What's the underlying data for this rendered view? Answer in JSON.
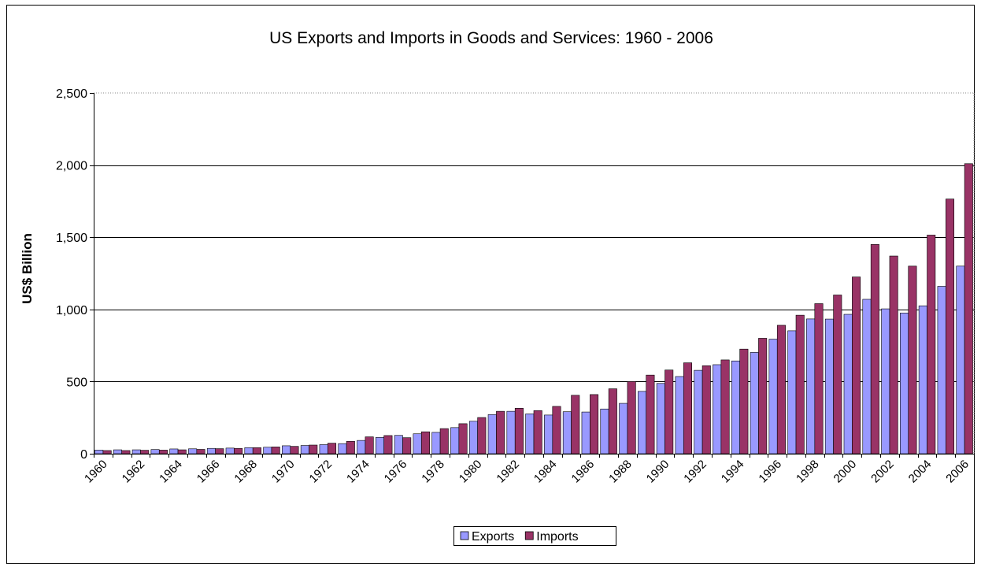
{
  "chart_data": {
    "type": "bar",
    "title": "US Exports and Imports in Goods and Services: 1960 - 2006",
    "xlabel": "",
    "ylabel": "US$ Billion",
    "ylim": [
      0,
      2500
    ],
    "yticks": [
      0,
      500,
      1000,
      1500,
      2000,
      2500
    ],
    "ytick_labels": [
      "0",
      "500",
      "1,000",
      "1,500",
      "2,000",
      "2,500"
    ],
    "grid": true,
    "legend_position": "bottom",
    "categories": [
      "1960",
      "1961",
      "1962",
      "1963",
      "1964",
      "1965",
      "1966",
      "1967",
      "1968",
      "1969",
      "1970",
      "1971",
      "1972",
      "1973",
      "1974",
      "1975",
      "1976",
      "1977",
      "1978",
      "1979",
      "1980",
      "1981",
      "1982",
      "1983",
      "1984",
      "1985",
      "1986",
      "1987",
      "1988",
      "1989",
      "1990",
      "1991",
      "1992",
      "1993",
      "1994",
      "1995",
      "1996",
      "1997",
      "1998",
      "1999",
      "2000",
      "2001",
      "2002",
      "2003",
      "2004",
      "2005",
      "2006"
    ],
    "xtick_labels": [
      "1960",
      "1962",
      "1964",
      "1966",
      "1968",
      "1970",
      "1972",
      "1974",
      "1976",
      "1978",
      "1980",
      "1982",
      "1984",
      "1986",
      "1988",
      "1990",
      "1992",
      "1994",
      "1996",
      "1998",
      "2000",
      "2002",
      "2004",
      "2006"
    ],
    "series": [
      {
        "name": "Exports",
        "color": "#9999ff",
        "values": [
          25,
          27,
          27,
          29,
          33,
          34,
          37,
          39,
          42,
          45,
          55,
          57,
          63,
          70,
          92,
          113,
          127,
          138,
          148,
          181,
          225,
          271,
          294,
          276,
          268,
          291,
          289,
          310,
          349,
          432,
          487,
          535,
          578,
          617,
          643,
          702,
          794,
          852,
          934,
          933,
          966,
          1070,
          1004,
          975,
          1025,
          1160,
          1300
        ]
      },
      {
        "name": "Imports",
        "color": "#993366",
        "values": [
          22,
          22,
          24,
          25,
          27,
          30,
          35,
          37,
          42,
          47,
          51,
          60,
          73,
          86,
          117,
          126,
          111,
          152,
          174,
          208,
          251,
          294,
          315,
          299,
          328,
          405,
          410,
          450,
          500,
          545,
          580,
          630,
          610,
          650,
          725,
          800,
          890,
          960,
          1040,
          1100,
          1225,
          1450,
          1370,
          1300,
          1515,
          1765,
          2010
        ]
      }
    ]
  }
}
